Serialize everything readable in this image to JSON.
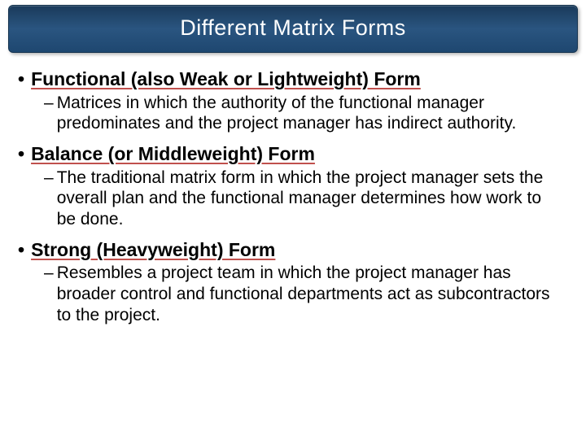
{
  "title": "Different Matrix Forms",
  "items": [
    {
      "heading": "Functional (also Weak or Lightweight) Form",
      "sub": "Matrices in which the authority of the functional manager predominates and the project manager has indirect authority."
    },
    {
      "heading": "Balance (or Middleweight) Form",
      "sub": "The traditional matrix form in which the project manager sets the overall plan and the functional manager determines how work to be done."
    },
    {
      "heading": "Strong (Heavyweight) Form",
      "sub": "Resembles a project team in which the project manager has broader control and functional departments act as subcontractors to the project."
    }
  ],
  "colors": {
    "title_bg_top": "#1a3a5a",
    "title_bg_mid": "#2a5580",
    "title_text": "#ffffff",
    "underline": "#c0504d",
    "body_text": "#000000",
    "background": "#ffffff"
  },
  "typography": {
    "title_fontsize": 27,
    "heading_fontsize": 23,
    "body_fontsize": 21,
    "font_family": "Arial"
  }
}
